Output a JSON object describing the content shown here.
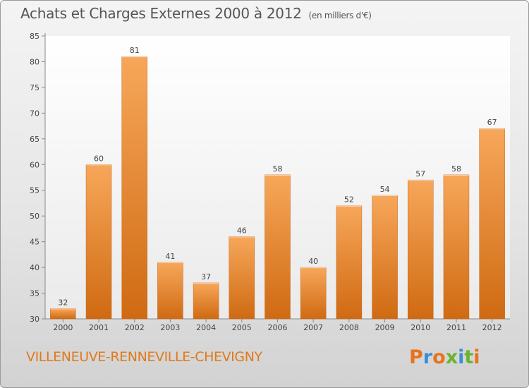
{
  "chart_data": {
    "type": "bar",
    "title": "Achats et Charges Externes 2000 à 2012",
    "subtitle": "(en milliers d'€)",
    "categories": [
      "2000",
      "2001",
      "2002",
      "2003",
      "2004",
      "2005",
      "2006",
      "2007",
      "2008",
      "2009",
      "2010",
      "2011",
      "2012"
    ],
    "values": [
      32,
      60,
      81,
      41,
      37,
      46,
      58,
      40,
      52,
      54,
      57,
      58,
      67
    ],
    "ylim": [
      30,
      85
    ],
    "yticks": [
      "30",
      "35",
      "40",
      "45",
      "50",
      "55",
      "60",
      "65",
      "70",
      "75",
      "80",
      "85"
    ],
    "grid": false,
    "bar_color_top": "#f7a75a",
    "bar_color_bottom": "#cf6a12"
  },
  "footer": {
    "city": "VILLENEUVE-RENNEVILLE-CHEVIGNY",
    "logo": "Proxiti",
    "logo_colors": [
      "#e8731c",
      "#3a8fd6",
      "#e8731c",
      "#6ab42d",
      "#3a8fd6",
      "#6ab42d",
      "#e8731c"
    ]
  }
}
